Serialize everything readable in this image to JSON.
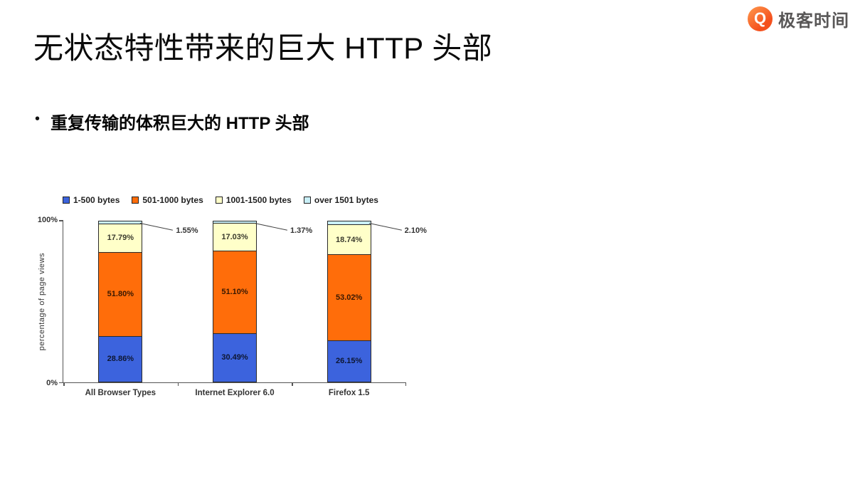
{
  "slide": {
    "title": "无状态特性带来的巨大 HTTP 头部",
    "bullet_marker": "•",
    "bullet": "重复传输的体积巨大的 HTTP 头部"
  },
  "logo": {
    "text": "极客时间",
    "glyph": "Q",
    "accent_color": "#f4511e",
    "text_color": "#595757"
  },
  "chart_data": {
    "type": "bar",
    "stacked": true,
    "title": "",
    "xlabel": "",
    "ylabel": "percentage of page views",
    "ylim": [
      0,
      100
    ],
    "yticks": [
      "0%",
      "100%"
    ],
    "grid": false,
    "legend_position": "top",
    "categories": [
      "All Browser Types",
      "Internet Explorer 6.0",
      "Firefox 1.5"
    ],
    "series": [
      {
        "name": "1-500 bytes",
        "color": "#3c63dd",
        "label_style": "inside",
        "values": [
          28.86,
          30.49,
          26.15
        ]
      },
      {
        "name": "501-1000 bytes",
        "color": "#ff6d0a",
        "label_style": "inside",
        "values": [
          51.8,
          51.1,
          53.02
        ]
      },
      {
        "name": "1001-1500 bytes",
        "color": "#ffffc9",
        "label_style": "inside",
        "values": [
          17.79,
          17.03,
          18.74
        ]
      },
      {
        "name": "over 1501 bytes",
        "color": "#c9eff7",
        "label_style": "callout",
        "values": [
          1.55,
          1.37,
          2.1
        ]
      }
    ]
  }
}
